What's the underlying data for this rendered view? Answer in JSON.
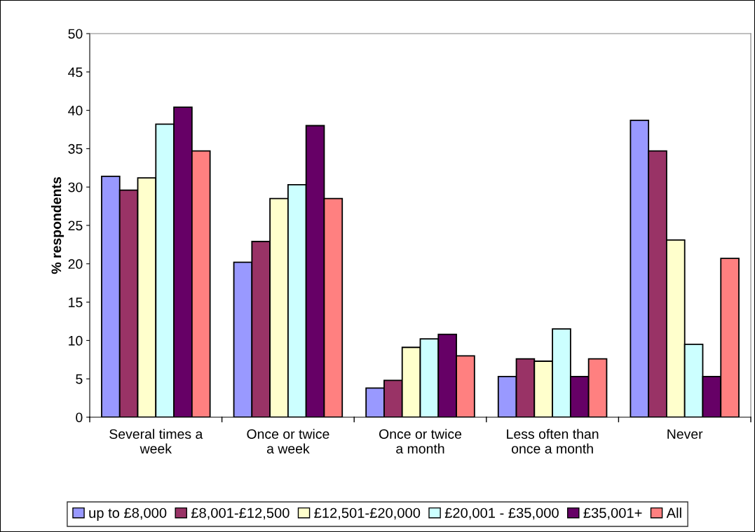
{
  "chart_data": {
    "type": "bar",
    "ylabel": "% respondents",
    "categories": [
      "Several times a\nweek",
      "Once or twice\na week",
      "Once or twice\na month",
      "Less often than\nonce a month",
      "Never"
    ],
    "series": [
      {
        "name": "up to £8,000",
        "color": "#9999ff",
        "values": [
          31.4,
          20.2,
          3.8,
          5.3,
          38.7
        ]
      },
      {
        "name": "£8,001-£12,500",
        "color": "#993366",
        "values": [
          29.6,
          22.9,
          4.8,
          7.6,
          34.7
        ]
      },
      {
        "name": "£12,501-£20,000",
        "color": "#ffffcc",
        "values": [
          31.2,
          28.5,
          9.1,
          7.3,
          23.1
        ]
      },
      {
        "name": "£20,001 - £35,000",
        "color": "#ccffff",
        "values": [
          38.2,
          30.3,
          10.2,
          11.5,
          9.5
        ]
      },
      {
        "name": "£35,001+",
        "color": "#660066",
        "values": [
          40.4,
          38.0,
          10.8,
          5.3,
          5.3
        ]
      },
      {
        "name": "All",
        "color": "#ff8080",
        "values": [
          34.7,
          28.5,
          8.0,
          7.6,
          20.7
        ]
      }
    ],
    "ylim": [
      0,
      50
    ],
    "yticks": [
      0,
      5,
      10,
      15,
      20,
      25,
      30,
      35,
      40,
      45,
      50
    ],
    "grid": false,
    "legend": "bottom"
  }
}
